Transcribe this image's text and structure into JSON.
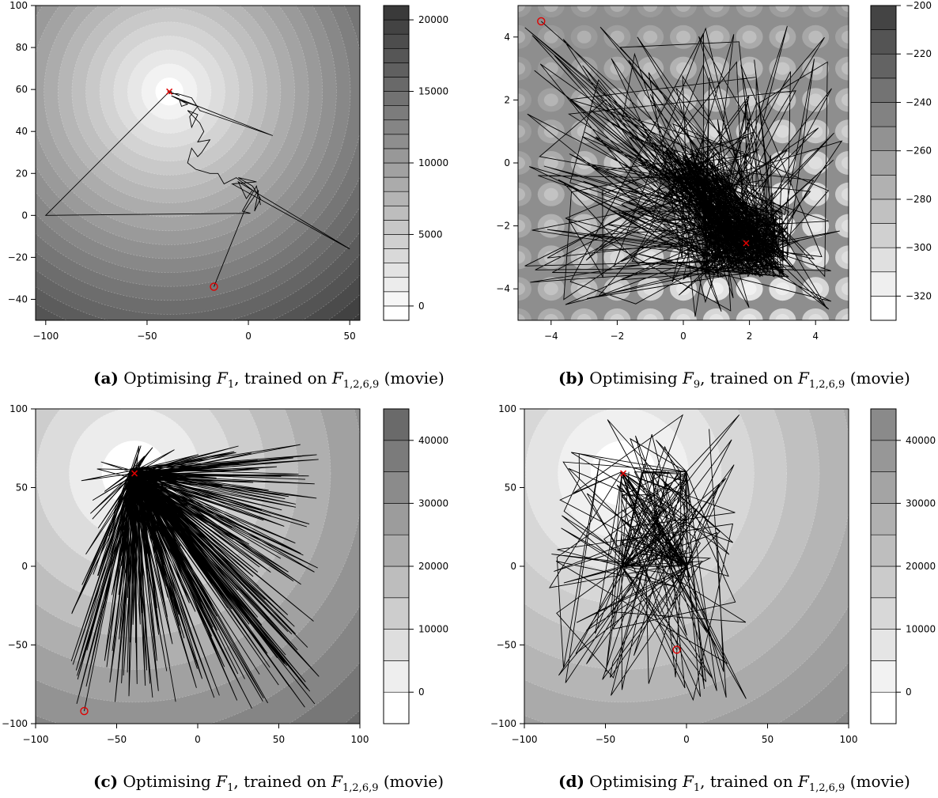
{
  "panels": [
    {
      "id": "a",
      "label": "(a)",
      "caption_text": "Optimising",
      "f_target": "1",
      "f_trained": "1,2,6,9",
      "caption_tail": "(movie)",
      "trained_word": "trained on",
      "colors": {
        "low": "#ffffff",
        "high": "#3a3a3a"
      }
    },
    {
      "id": "b",
      "label": "(b)",
      "caption_text": "Optimising",
      "f_target": "9",
      "f_trained": "1,2,6,9",
      "caption_tail": "(movie)",
      "trained_word": "trained on",
      "colors": {
        "low": "#ffffff",
        "high": "#444444"
      }
    },
    {
      "id": "c",
      "label": "(c)",
      "caption_text": "Optimising",
      "f_target": "1",
      "f_trained": "1,2,6,9",
      "caption_tail": "(movie)",
      "trained_word": "trained on",
      "colors": {
        "low": "#ffffff",
        "high": "#6a6a6a"
      }
    },
    {
      "id": "d",
      "label": "(d)",
      "caption_text": "Optimising",
      "f_target": "1",
      "f_trained": "1,2,6,9",
      "caption_tail": "(movie)",
      "trained_word": "trained on",
      "colors": {
        "low": "#ffffff",
        "high": "#8a8a8a"
      }
    }
  ],
  "chart_data": [
    {
      "type": "contour",
      "xlim": [
        -105,
        55
      ],
      "ylim": [
        -50,
        100
      ],
      "x_ticks": [
        -100,
        -50,
        0,
        50
      ],
      "y_ticks": [
        -40,
        -20,
        0,
        20,
        40,
        60,
        80,
        100
      ],
      "colorbar": {
        "range": [
          -1000,
          21000
        ],
        "ticks": [
          0,
          5000,
          10000,
          15000,
          20000
        ],
        "levels": 22
      },
      "contour_center": [
        -39,
        59
      ],
      "contour_rings": 22,
      "optimum": [
        -39,
        59
      ],
      "start": [
        -17,
        -34
      ],
      "path": [
        [
          -17,
          -34
        ],
        [
          -2,
          2
        ],
        [
          5,
          12
        ],
        [
          3,
          2
        ],
        [
          6,
          8
        ],
        [
          2,
          14
        ],
        [
          -5,
          18
        ],
        [
          4,
          16
        ],
        [
          -8,
          15
        ],
        [
          50,
          -16
        ],
        [
          -5,
          16
        ],
        [
          -1,
          8
        ],
        [
          2,
          12
        ],
        [
          -6,
          18
        ],
        [
          -12,
          15
        ],
        [
          -15,
          20
        ],
        [
          -19,
          20
        ],
        [
          -26,
          22
        ],
        [
          -30,
          25
        ],
        [
          -28,
          32
        ],
        [
          -25,
          28
        ],
        [
          -23,
          30
        ],
        [
          -19,
          36
        ],
        [
          -25,
          35
        ],
        [
          -22,
          40
        ],
        [
          -24,
          44
        ],
        [
          -30,
          50
        ],
        [
          -25,
          48
        ],
        [
          -28,
          42
        ],
        [
          -29,
          47
        ],
        [
          -25,
          52
        ],
        [
          -34,
          55
        ],
        [
          -33,
          52
        ],
        [
          -30,
          53
        ],
        [
          -36,
          56
        ],
        [
          -38,
          57
        ],
        [
          12,
          38
        ],
        [
          -24,
          50
        ],
        [
          -28,
          56
        ],
        [
          -35,
          58
        ],
        [
          -38,
          58
        ],
        [
          -36,
          58
        ],
        [
          -34,
          57
        ],
        [
          -39,
          59
        ],
        [
          -40,
          59
        ],
        [
          -38,
          59
        ],
        [
          -39,
          58
        ],
        [
          -39,
          59
        ],
        [
          -100,
          0
        ],
        [
          1,
          1
        ],
        [
          -3,
          2
        ],
        [
          4,
          14
        ],
        [
          6,
          5
        ]
      ]
    },
    {
      "type": "contour",
      "xlim": [
        -5,
        5
      ],
      "ylim": [
        -5,
        5
      ],
      "x_ticks": [
        -4,
        -2,
        0,
        2,
        4
      ],
      "y_ticks": [
        -4,
        -2,
        0,
        2,
        4
      ],
      "colorbar": {
        "range": [
          -330,
          -200
        ],
        "ticks": [
          -320,
          -300,
          -280,
          -260,
          -240,
          -220,
          -200
        ],
        "levels": 13
      },
      "optimum": [
        1.9,
        -2.55
      ],
      "start": [
        -4.3,
        4.5
      ],
      "path_kind": "random_scatter_around_optimum",
      "path_segments": 700
    },
    {
      "type": "contour",
      "xlim": [
        -100,
        100
      ],
      "ylim": [
        -100,
        100
      ],
      "x_ticks": [
        -100,
        -50,
        0,
        50,
        100
      ],
      "y_ticks": [
        -100,
        -50,
        0,
        50,
        100
      ],
      "colorbar": {
        "range": [
          -5000,
          45000
        ],
        "ticks": [
          0,
          10000,
          20000,
          30000,
          40000
        ],
        "levels": 10
      },
      "contour_center": [
        -39,
        59
      ],
      "contour_rings": 11,
      "optimum": [
        -39,
        59
      ],
      "start": [
        -70,
        -92
      ],
      "path_kind": "star_from_optimum_to_region",
      "region": [
        [
          -78,
          75
        ],
        [
          -92,
          78
        ]
      ],
      "path_segments": 520
    },
    {
      "type": "contour",
      "xlim": [
        -100,
        100
      ],
      "ylim": [
        -100,
        100
      ],
      "x_ticks": [
        -100,
        -50,
        0,
        50,
        100
      ],
      "y_ticks": [
        -100,
        -50,
        0,
        50,
        100
      ],
      "colorbar": {
        "range": [
          -5000,
          45000
        ],
        "ticks": [
          0,
          10000,
          20000,
          30000,
          40000
        ],
        "levels": 10
      },
      "contour_center": [
        -39,
        59
      ],
      "contour_rings": 11,
      "optimum": [
        -39,
        59
      ],
      "start": [
        -6,
        -53
      ],
      "path_kind": "box_clipped_random",
      "region": [
        [
          -85,
          37
        ],
        [
          -85,
          98
        ]
      ],
      "box": [
        [
          -40,
          0
        ],
        [
          0,
          60
        ]
      ],
      "path_segments": 260
    }
  ]
}
